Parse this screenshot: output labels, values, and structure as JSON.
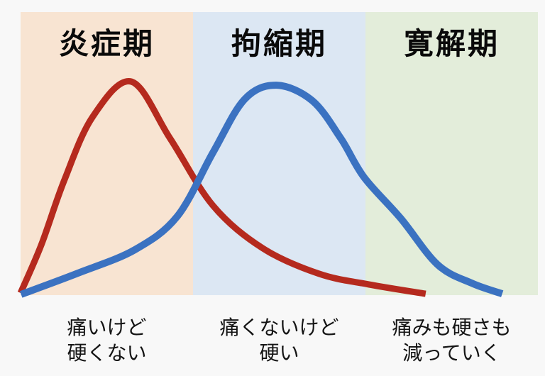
{
  "figure": {
    "background": "#f8f8f8",
    "phases": [
      {
        "title": "炎症期",
        "band_color": "#f8e4d2",
        "lines": [
          "痛いけど",
          "硬くない"
        ]
      },
      {
        "title": "拘縮期",
        "band_color": "#dce7f3",
        "lines": [
          "痛くないけど",
          "硬い"
        ]
      },
      {
        "title": "寛解期",
        "band_color": "#e3edda",
        "lines": [
          "痛みも硬さも",
          "減っていく"
        ]
      }
    ]
  },
  "chart_data": {
    "type": "line",
    "title": "",
    "xlabel": "",
    "ylabel": "",
    "grid": false,
    "legend_position": "none",
    "xlim": [
      0,
      1
    ],
    "ylim": [
      0,
      1
    ],
    "phases": [
      "炎症期",
      "拘縮期",
      "寛解期"
    ],
    "phase_band_colors": [
      "#f8e4d2",
      "#dce7f3",
      "#e3edda"
    ],
    "phase_boundaries_x": [
      0,
      0.332,
      0.665,
      1
    ],
    "phase_annotations": [
      "痛いけど 硬くない",
      "痛くないけど 硬い",
      "痛みも硬さも 減っていく"
    ],
    "series": [
      {
        "name": "red-curve",
        "color": "#b52a1e",
        "stroke_width": 9,
        "x": [
          0,
          0.04,
          0.084,
          0.139,
          0.214,
          0.289,
          0.372,
          0.468,
          0.577,
          0.673,
          0.783
        ],
        "y": [
          0.007,
          0.233,
          0.533,
          0.833,
          1.0,
          0.733,
          0.417,
          0.217,
          0.097,
          0.047,
          0.003
        ]
      },
      {
        "name": "blue-curve",
        "color": "#3b72c1",
        "stroke_width": 10,
        "x": [
          0.001,
          0.111,
          0.221,
          0.303,
          0.372,
          0.433,
          0.495,
          0.564,
          0.619,
          0.664,
          0.735,
          0.806,
          0.872,
          0.931
        ],
        "y": [
          0.0,
          0.1,
          0.21,
          0.367,
          0.667,
          0.917,
          0.983,
          0.91,
          0.733,
          0.55,
          0.357,
          0.14,
          0.053,
          0.003
        ]
      }
    ]
  }
}
